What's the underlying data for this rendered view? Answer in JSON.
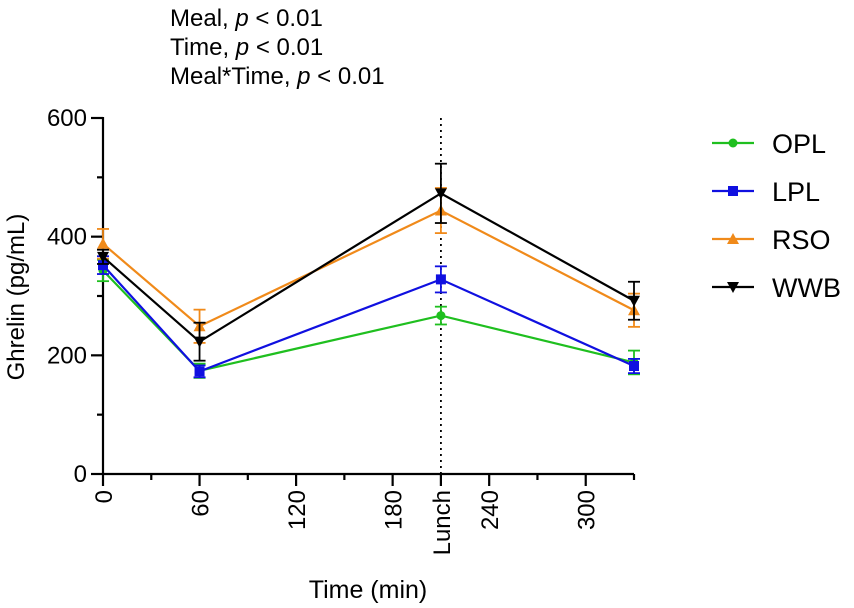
{
  "chart_data": {
    "type": "line",
    "stats_lines": [
      {
        "label": "Meal",
        "italic": "p",
        "rest": " < 0.01"
      },
      {
        "label": "Time",
        "italic": "p",
        "rest": " < 0.01"
      },
      {
        "label": "Meal*Time",
        "italic": "p",
        "rest": " < 0.01"
      }
    ],
    "xlabel": "Time (min)",
    "ylabel": "Ghrelin (pg/mL)",
    "xlim": [
      0,
      330
    ],
    "ylim": [
      0,
      600
    ],
    "x_ticks": [
      {
        "value": 0,
        "label": "0"
      },
      {
        "value": 60,
        "label": "60"
      },
      {
        "value": 120,
        "label": "120"
      },
      {
        "value": 180,
        "label": "180"
      },
      {
        "value": 210,
        "label": "Lunch"
      },
      {
        "value": 240,
        "label": "240"
      },
      {
        "value": 300,
        "label": "300"
      }
    ],
    "x_minor_ticks": [
      30,
      90,
      150,
      270
    ],
    "y_ticks": [
      0,
      200,
      400,
      600
    ],
    "y_minor_ticks": [
      100,
      300,
      500
    ],
    "reference_line_x": 210,
    "x": [
      0,
      60,
      210,
      330
    ],
    "series": [
      {
        "name": "OPL",
        "color": "#1fbf1f",
        "marker": "circle",
        "values": [
          343,
          174,
          267,
          188
        ],
        "errors": [
          18,
          12,
          15,
          20
        ]
      },
      {
        "name": "LPL",
        "color": "#1010e0",
        "marker": "square",
        "values": [
          352,
          173,
          328,
          182
        ],
        "errors": [
          15,
          10,
          22,
          12
        ]
      },
      {
        "name": "RSO",
        "color": "#f08a1a",
        "marker": "triangle-up",
        "values": [
          388,
          249,
          444,
          276
        ],
        "errors": [
          25,
          28,
          38,
          28
        ]
      },
      {
        "name": "WWB",
        "color": "#000000",
        "marker": "triangle-down",
        "values": [
          366,
          223,
          473,
          292
        ],
        "errors": [
          12,
          32,
          50,
          32
        ]
      }
    ]
  }
}
